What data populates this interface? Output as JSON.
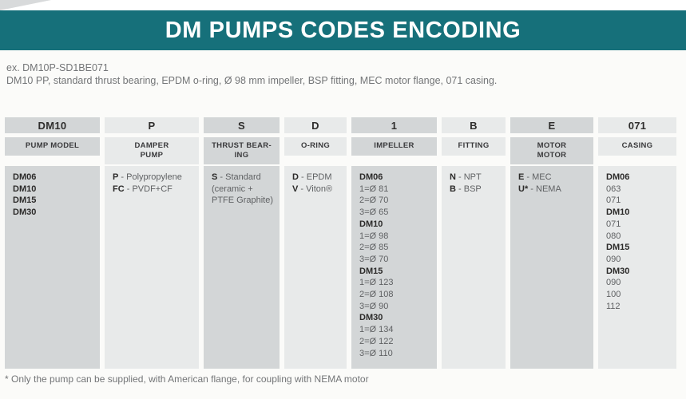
{
  "header": {
    "title": "DM PUMPS CODES ENCODING"
  },
  "example": {
    "code_line": "ex. DM10P-SD1BE071",
    "description": "DM10 PP, standard thrust bearing, EPDM o-ring, Ø 98 mm impeller, BSP fitting, MEC motor flange, 071 casing."
  },
  "colors": {
    "accent_teal": "#16707a",
    "cell_dark": "#d3d6d7",
    "cell_light": "#e8eaea"
  },
  "table": {
    "columns": [
      {
        "code": "DM10",
        "label": "PUMP MODEL",
        "lines": [
          {
            "bold": "DM06"
          },
          {
            "bold": "DM10"
          },
          {
            "bold": "DM15"
          },
          {
            "bold": "DM30"
          }
        ]
      },
      {
        "code": "P",
        "label": "DAMPER\nPUMP",
        "lines": [
          {
            "bold": "P",
            "rest": " - Polypropylene"
          },
          {
            "bold": "FC",
            "rest": " - PVDF+CF"
          }
        ]
      },
      {
        "code": "S",
        "label": "THRUST BEAR-\nING",
        "lines": [
          {
            "bold": "S",
            "rest": " - Standard"
          },
          {
            "rest": "(ceramic +"
          },
          {
            "rest": "PTFE Graphite)"
          }
        ]
      },
      {
        "code": "D",
        "label": "O-RING",
        "lines": [
          {
            "bold": "D",
            "rest": " - EPDM"
          },
          {
            "bold": "V",
            "rest": " - Viton®"
          }
        ]
      },
      {
        "code": "1",
        "label": "IMPELLER",
        "lines": [
          {
            "bold": "DM06"
          },
          {
            "rest": "1=Ø 81"
          },
          {
            "rest": "2=Ø 70"
          },
          {
            "rest": "3=Ø 65"
          },
          {
            "bold": "DM10"
          },
          {
            "rest": "1=Ø 98"
          },
          {
            "rest": "2=Ø 85"
          },
          {
            "rest": "3=Ø 70"
          },
          {
            "bold": "DM15"
          },
          {
            "rest": "1=Ø 123"
          },
          {
            "rest": "2=Ø 108"
          },
          {
            "rest": "3=Ø 90"
          },
          {
            "bold": "DM30"
          },
          {
            "rest": "1=Ø 134"
          },
          {
            "rest": "2=Ø 122"
          },
          {
            "rest": "3=Ø 110"
          }
        ]
      },
      {
        "code": "B",
        "label": "FITTING",
        "lines": [
          {
            "bold": "N",
            "rest": " - NPT"
          },
          {
            "bold": "B",
            "rest": " - BSP"
          }
        ]
      },
      {
        "code": "E",
        "label": "MOTOR\nMOTOR",
        "lines": [
          {
            "bold": "E",
            "rest": " - MEC"
          },
          {
            "bold": "U*",
            "rest": " - NEMA"
          }
        ]
      },
      {
        "code": "071",
        "label": "CASING",
        "lines": [
          {
            "bold": "DM06"
          },
          {
            "rest": "063"
          },
          {
            "rest": "071"
          },
          {
            "bold": "DM10"
          },
          {
            "rest": "071"
          },
          {
            "rest": "080"
          },
          {
            "bold": "DM15"
          },
          {
            "rest": "090"
          },
          {
            "bold": "DM30"
          },
          {
            "rest": "090"
          },
          {
            "rest": "100"
          },
          {
            "rest": "112"
          }
        ]
      }
    ]
  },
  "footnote": "* Only the pump can be supplied, with American flange, for coupling with NEMA motor"
}
